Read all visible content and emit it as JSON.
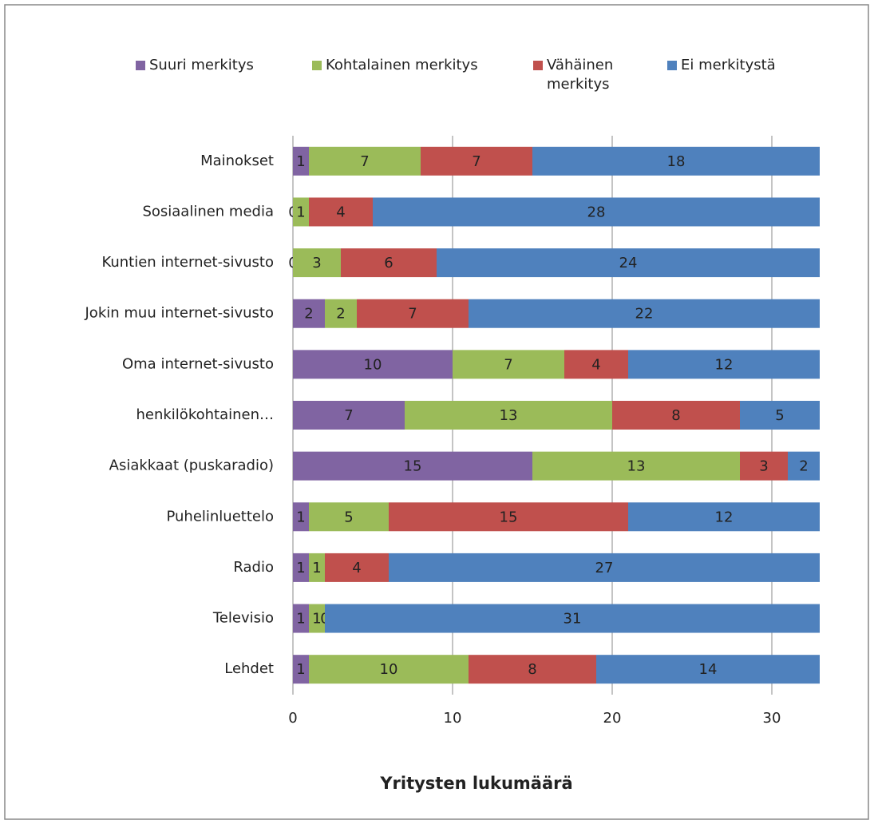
{
  "chart_data": {
    "type": "stacked_barh",
    "x_label": "Yritysten lukumäärä",
    "categories": [
      "Mainokset",
      "Sosiaalinen media",
      "Kuntien internet-sivusto",
      "Jokin muu internet-sivusto",
      "Oma internet-sivusto",
      "henkilökohtainen…",
      "Asiakkaat (puskaradio)",
      "Puhelinluettelo",
      "Radio",
      "Televisio",
      "Lehdet"
    ],
    "series": [
      {
        "name": "Suuri merkitys",
        "color": "#8064a2",
        "values": [
          1,
          0,
          0,
          2,
          10,
          7,
          15,
          1,
          1,
          1,
          1
        ]
      },
      {
        "name": "Kohtalainen merkitys",
        "color": "#9bbb59",
        "values": [
          7,
          1,
          3,
          2,
          7,
          13,
          13,
          5,
          1,
          1,
          10
        ]
      },
      {
        "name": "Vähäinen merkitys",
        "color": "#c0504d",
        "values": [
          7,
          4,
          6,
          7,
          4,
          8,
          3,
          15,
          4,
          0,
          8
        ]
      },
      {
        "name": "Ei merkitystä",
        "color": "#4f81bd",
        "values": [
          18,
          28,
          24,
          22,
          12,
          5,
          2,
          12,
          27,
          31,
          14
        ]
      }
    ],
    "xlim": [
      0,
      33
    ],
    "xticks": [
      0,
      10,
      20,
      30
    ],
    "grid": true,
    "legend": "top"
  }
}
